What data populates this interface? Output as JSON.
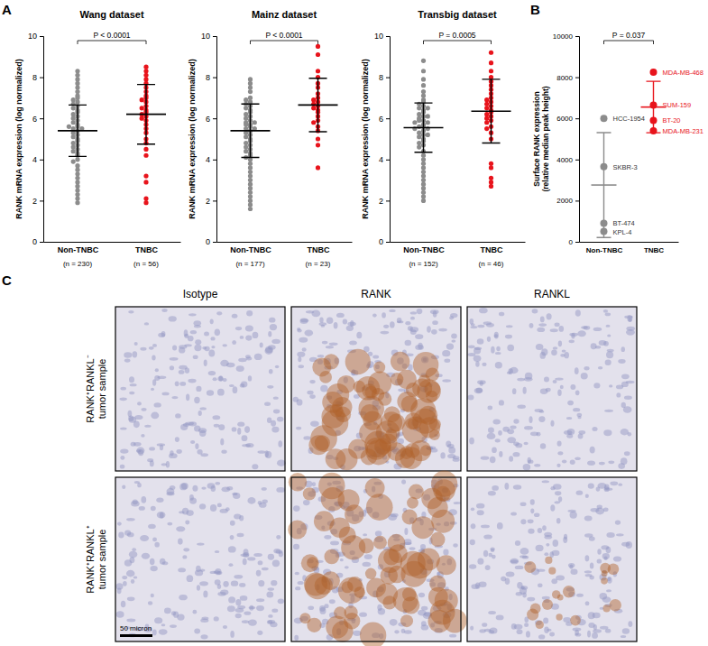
{
  "panel_labels": [
    "A",
    "B",
    "C"
  ],
  "chart_data": [
    {
      "type": "scatter",
      "title": "Wang dataset",
      "y_label": "RANK mRNA expression (log normalized)",
      "categories": [
        "Non-TNBC",
        "TNBC"
      ],
      "category_notes": [
        "(n = 230)",
        "(n = 56)"
      ],
      "ylim": [
        0,
        10
      ],
      "yticks": [
        0,
        2,
        4,
        6,
        8,
        10
      ],
      "annotation": "P < 0.0001",
      "groups": [
        {
          "color": "#8c8c8c",
          "mean": 5.4,
          "sd": 1.25,
          "values": [
            8.3,
            8.1,
            7.9,
            7.7,
            7.5,
            7.3,
            7.1,
            7.0,
            6.8,
            6.7,
            6.6,
            6.5,
            6.4,
            6.3,
            6.2,
            6.1,
            6.0,
            5.9,
            5.8,
            5.7,
            5.6,
            5.5,
            5.5,
            5.4,
            5.3,
            5.2,
            5.1,
            5.0,
            4.9,
            4.8,
            4.7,
            4.6,
            4.5,
            4.4,
            4.3,
            4.2,
            4.0,
            3.9,
            3.7,
            3.5,
            3.3,
            3.1,
            2.9,
            2.7,
            2.5,
            2.3,
            2.1,
            1.9,
            6.9,
            5.6
          ]
        },
        {
          "color": "#e8141c",
          "mean": 6.2,
          "sd": 1.45,
          "values": [
            8.5,
            8.3,
            8.1,
            7.9,
            7.7,
            7.5,
            7.3,
            7.1,
            7.0,
            6.9,
            6.8,
            6.6,
            6.5,
            6.4,
            6.3,
            6.2,
            6.1,
            6.0,
            5.9,
            5.7,
            5.5,
            5.3,
            5.0,
            4.8,
            4.5,
            4.2,
            3.2,
            2.9,
            2.1,
            1.9
          ]
        }
      ]
    },
    {
      "type": "scatter",
      "title": "Mainz dataset",
      "y_label": "RANK mRNA expression (log normalized)",
      "categories": [
        "Non-TNBC",
        "TNBC"
      ],
      "category_notes": [
        "(n = 177)",
        "(n = 23)"
      ],
      "ylim": [
        0,
        10
      ],
      "yticks": [
        0,
        2,
        4,
        6,
        8,
        10
      ],
      "annotation": "P < 0.0001",
      "groups": [
        {
          "color": "#8c8c8c",
          "mean": 5.4,
          "sd": 1.3,
          "values": [
            7.9,
            7.7,
            7.5,
            7.3,
            7.0,
            6.8,
            6.7,
            6.6,
            6.5,
            6.4,
            6.3,
            6.2,
            6.1,
            6.0,
            5.9,
            5.8,
            5.8,
            5.7,
            5.6,
            5.5,
            5.5,
            5.4,
            5.3,
            5.2,
            5.1,
            5.0,
            4.9,
            4.8,
            4.7,
            4.6,
            4.5,
            4.4,
            4.3,
            4.2,
            4.1,
            4.0,
            3.8,
            3.6,
            3.4,
            3.2,
            3.0,
            2.8,
            2.6,
            2.4,
            2.2,
            2.0,
            1.8,
            1.6,
            6.9,
            5.7
          ]
        },
        {
          "color": "#e8141c",
          "mean": 6.65,
          "sd": 1.3,
          "values": [
            9.5,
            9.1,
            8.3,
            8.0,
            7.7,
            7.5,
            7.2,
            7.0,
            6.9,
            6.8,
            6.7,
            6.6,
            6.5,
            6.4,
            6.3,
            6.1,
            5.9,
            5.8,
            5.6,
            5.4,
            5.0,
            4.7,
            3.6
          ]
        }
      ]
    },
    {
      "type": "scatter",
      "title": "Transbig dataset",
      "y_label": "RANK mRNA expression (log normalized)",
      "categories": [
        "Non-TNBC",
        "TNBC"
      ],
      "category_notes": [
        "(n = 152)",
        "(n = 46)"
      ],
      "ylim": [
        0,
        10
      ],
      "yticks": [
        0,
        2,
        4,
        6,
        8,
        10
      ],
      "annotation": "P = 0.0005",
      "groups": [
        {
          "color": "#8c8c8c",
          "mean": 5.55,
          "sd": 1.2,
          "values": [
            8.8,
            8.3,
            7.9,
            7.6,
            7.3,
            7.1,
            6.9,
            6.8,
            6.7,
            6.6,
            6.5,
            6.4,
            6.3,
            6.2,
            6.1,
            6.0,
            5.9,
            5.9,
            5.8,
            5.7,
            5.6,
            5.6,
            5.5,
            5.4,
            5.3,
            5.2,
            5.1,
            5.0,
            4.9,
            4.8,
            4.7,
            4.6,
            4.4,
            4.2,
            4.0,
            3.8,
            3.6,
            3.4,
            3.2,
            3.0,
            2.8,
            2.6,
            2.4,
            2.2,
            2.0,
            6.5,
            5.5,
            5.8,
            6.1,
            5.2
          ]
        },
        {
          "color": "#e8141c",
          "mean": 6.35,
          "sd": 1.55,
          "values": [
            9.2,
            8.7,
            8.3,
            8.0,
            7.8,
            7.6,
            7.4,
            7.2,
            7.0,
            6.9,
            6.8,
            6.7,
            6.6,
            6.5,
            6.4,
            6.3,
            6.2,
            6.1,
            6.0,
            5.9,
            5.8,
            5.6,
            5.5,
            5.3,
            5.0,
            3.8,
            3.6,
            3.1,
            2.9,
            2.7
          ]
        }
      ]
    },
    {
      "type": "scatter",
      "y_label": [
        "Surface RANK expression",
        "(relative median peak height)"
      ],
      "categories": [
        "Non-TNBC",
        "TNBC"
      ],
      "ylim": [
        0,
        10000
      ],
      "yticks": [
        0,
        2000,
        4000,
        6000,
        8000,
        10000
      ],
      "annotation": "P = 0.037",
      "groups": [
        {
          "color": "#8c8c8c",
          "label_color": "#333333",
          "mean": 2760,
          "sd": 2550,
          "values": [
            6000,
            3650,
            900,
            500
          ],
          "point_labels": [
            "HCC-1954",
            "SKBR-3",
            "BT-474",
            "KPL-4"
          ]
        },
        {
          "color": "#e8141c",
          "label_color": "#e8141c",
          "mean": 6550,
          "sd": 1250,
          "values": [
            8250,
            6650,
            5900,
            5400
          ],
          "point_labels": [
            "MDA-MB-468",
            "SUM-159",
            "BT-20",
            "MDA-MB-231"
          ]
        }
      ]
    }
  ],
  "panel_c": {
    "column_titles": [
      "Isotype",
      "RANK",
      "RANKL"
    ],
    "row_titles": [
      [
        "RANK⁺RANKL⁻",
        "tumor sample"
      ],
      [
        "RANK⁺RANKL⁺",
        "tumor sample"
      ]
    ],
    "scale_bar": "50 micron"
  }
}
